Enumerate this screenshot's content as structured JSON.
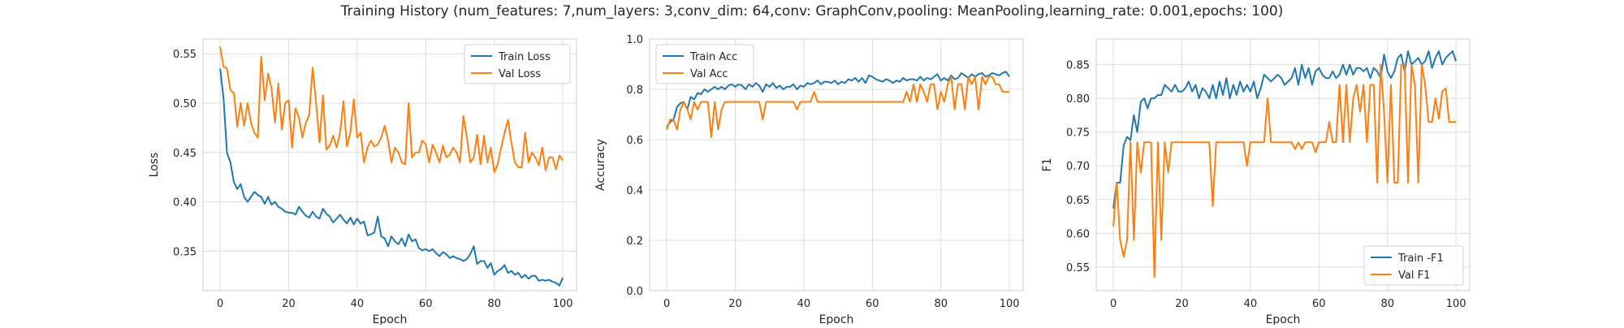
{
  "figure": {
    "title": "Training History (num_features: 7,num_layers: 3,conv_dim: 64,conv: GraphConv,pooling: MeanPooling,learning_rate: 0.001,epochs: 100)"
  },
  "colors": {
    "train": "#1f77b4",
    "val": "#ff7f0e",
    "grid": "#dcdcdc",
    "spine": "#cccccc"
  },
  "chart_data": [
    {
      "type": "line",
      "title": "",
      "xlabel": "Epoch",
      "ylabel": "Loss",
      "xlim": [
        -5,
        104
      ],
      "ylim": [
        0.31,
        0.565
      ],
      "xticks": [
        0,
        20,
        40,
        60,
        80,
        100
      ],
      "yticks": [
        0.35,
        0.4,
        0.45,
        0.5,
        0.55
      ],
      "ytick_labels": [
        "0.35",
        "0.40",
        "0.45",
        "0.50",
        "0.55"
      ],
      "grid": true,
      "legend_loc": "upper right",
      "series": [
        {
          "name": "Train Loss",
          "color": "#1f77b4",
          "values": [
            0.535,
            0.505,
            0.45,
            0.44,
            0.42,
            0.413,
            0.418,
            0.405,
            0.4,
            0.405,
            0.41,
            0.407,
            0.405,
            0.398,
            0.405,
            0.397,
            0.4,
            0.395,
            0.393,
            0.39,
            0.389,
            0.389,
            0.387,
            0.395,
            0.39,
            0.386,
            0.384,
            0.39,
            0.385,
            0.383,
            0.393,
            0.388,
            0.385,
            0.379,
            0.383,
            0.387,
            0.382,
            0.378,
            0.384,
            0.377,
            0.383,
            0.378,
            0.38,
            0.366,
            0.367,
            0.369,
            0.385,
            0.365,
            0.363,
            0.355,
            0.365,
            0.36,
            0.357,
            0.363,
            0.355,
            0.367,
            0.36,
            0.362,
            0.353,
            0.351,
            0.352,
            0.35,
            0.352,
            0.348,
            0.345,
            0.349,
            0.347,
            0.343,
            0.345,
            0.343,
            0.342,
            0.34,
            0.342,
            0.347,
            0.355,
            0.337,
            0.34,
            0.34,
            0.333,
            0.338,
            0.326,
            0.33,
            0.332,
            0.336,
            0.328,
            0.33,
            0.326,
            0.328,
            0.323,
            0.326,
            0.322,
            0.325,
            0.325,
            0.32,
            0.321,
            0.32,
            0.321,
            0.319,
            0.318,
            0.315,
            0.323
          ]
        },
        {
          "name": "Val Loss",
          "color": "#ff7f0e",
          "values": [
            0.557,
            0.537,
            0.535,
            0.513,
            0.51,
            0.476,
            0.5,
            0.477,
            0.5,
            0.48,
            0.47,
            0.465,
            0.547,
            0.503,
            0.53,
            0.515,
            0.48,
            0.52,
            0.473,
            0.5,
            0.503,
            0.455,
            0.495,
            0.485,
            0.465,
            0.48,
            0.488,
            0.536,
            0.5,
            0.46,
            0.508,
            0.453,
            0.457,
            0.467,
            0.455,
            0.47,
            0.502,
            0.456,
            0.47,
            0.504,
            0.465,
            0.47,
            0.44,
            0.455,
            0.462,
            0.456,
            0.458,
            0.465,
            0.477,
            0.462,
            0.44,
            0.455,
            0.45,
            0.44,
            0.438,
            0.5,
            0.445,
            0.45,
            0.45,
            0.462,
            0.458,
            0.44,
            0.458,
            0.45,
            0.44,
            0.457,
            0.445,
            0.448,
            0.455,
            0.45,
            0.44,
            0.487,
            0.465,
            0.44,
            0.445,
            0.468,
            0.438,
            0.467,
            0.44,
            0.455,
            0.43,
            0.438,
            0.455,
            0.47,
            0.483,
            0.46,
            0.44,
            0.435,
            0.435,
            0.47,
            0.44,
            0.45,
            0.445,
            0.437,
            0.455,
            0.432,
            0.445,
            0.445,
            0.433,
            0.447,
            0.442
          ]
        }
      ]
    },
    {
      "type": "line",
      "title": "",
      "xlabel": "Epoch",
      "ylabel": "Accuracy",
      "xlim": [
        -5,
        104
      ],
      "ylim": [
        0.0,
        1.0
      ],
      "xticks": [
        0,
        20,
        40,
        60,
        80,
        100
      ],
      "yticks": [
        0.0,
        0.2,
        0.4,
        0.6,
        0.8,
        1.0
      ],
      "ytick_labels": [
        "0.0",
        "0.2",
        "0.4",
        "0.6",
        "0.8",
        "1.0"
      ],
      "grid": true,
      "legend_loc": "upper left",
      "series": [
        {
          "name": "Train Acc",
          "color": "#1f77b4",
          "values": [
            0.65,
            0.67,
            0.68,
            0.73,
            0.745,
            0.75,
            0.72,
            0.77,
            0.76,
            0.785,
            0.78,
            0.8,
            0.79,
            0.8,
            0.81,
            0.8,
            0.81,
            0.8,
            0.815,
            0.82,
            0.81,
            0.82,
            0.815,
            0.8,
            0.82,
            0.81,
            0.825,
            0.815,
            0.79,
            0.82,
            0.81,
            0.825,
            0.805,
            0.815,
            0.8,
            0.81,
            0.81,
            0.82,
            0.8,
            0.815,
            0.81,
            0.825,
            0.82,
            0.825,
            0.835,
            0.82,
            0.83,
            0.83,
            0.825,
            0.835,
            0.82,
            0.83,
            0.825,
            0.84,
            0.835,
            0.845,
            0.83,
            0.845,
            0.825,
            0.855,
            0.85,
            0.84,
            0.835,
            0.83,
            0.84,
            0.835,
            0.825,
            0.835,
            0.83,
            0.845,
            0.835,
            0.84,
            0.84,
            0.835,
            0.85,
            0.835,
            0.845,
            0.84,
            0.85,
            0.86,
            0.835,
            0.845,
            0.835,
            0.855,
            0.84,
            0.845,
            0.865,
            0.855,
            0.845,
            0.86,
            0.85,
            0.86,
            0.865,
            0.85,
            0.855,
            0.865,
            0.86,
            0.855,
            0.865,
            0.87,
            0.85
          ]
        },
        {
          "name": "Val Acc",
          "color": "#ff7f0e",
          "values": [
            0.64,
            0.68,
            0.68,
            0.64,
            0.72,
            0.75,
            0.72,
            0.68,
            0.75,
            0.72,
            0.75,
            0.75,
            0.75,
            0.61,
            0.75,
            0.64,
            0.72,
            0.75,
            0.75,
            0.75,
            0.75,
            0.75,
            0.75,
            0.75,
            0.75,
            0.75,
            0.75,
            0.75,
            0.68,
            0.75,
            0.75,
            0.75,
            0.75,
            0.75,
            0.75,
            0.75,
            0.75,
            0.75,
            0.72,
            0.75,
            0.75,
            0.75,
            0.75,
            0.79,
            0.75,
            0.75,
            0.75,
            0.75,
            0.75,
            0.75,
            0.75,
            0.75,
            0.75,
            0.75,
            0.75,
            0.75,
            0.75,
            0.75,
            0.75,
            0.75,
            0.75,
            0.75,
            0.75,
            0.75,
            0.75,
            0.75,
            0.75,
            0.75,
            0.75,
            0.75,
            0.79,
            0.75,
            0.82,
            0.75,
            0.82,
            0.79,
            0.75,
            0.82,
            0.82,
            0.72,
            0.79,
            0.75,
            0.82,
            0.85,
            0.72,
            0.82,
            0.82,
            0.72,
            0.85,
            0.82,
            0.85,
            0.72,
            0.85,
            0.82,
            0.85,
            0.85,
            0.82,
            0.82,
            0.79,
            0.79,
            0.79
          ]
        }
      ]
    },
    {
      "type": "line",
      "title": "",
      "xlabel": "Epoch",
      "ylabel": "F1",
      "xlim": [
        -5,
        104
      ],
      "ylim": [
        0.515,
        0.888
      ],
      "xticks": [
        0,
        20,
        40,
        60,
        80,
        100
      ],
      "yticks": [
        0.55,
        0.6,
        0.65,
        0.7,
        0.75,
        0.8,
        0.85
      ],
      "ytick_labels": [
        "0.55",
        "0.60",
        "0.65",
        "0.70",
        "0.75",
        "0.80",
        "0.85"
      ],
      "grid": true,
      "legend_loc": "lower right",
      "series": [
        {
          "name": "Train -F1",
          "color": "#1f77b4",
          "values": [
            0.637,
            0.675,
            0.675,
            0.73,
            0.743,
            0.738,
            0.775,
            0.75,
            0.795,
            0.8,
            0.785,
            0.8,
            0.8,
            0.805,
            0.805,
            0.82,
            0.815,
            0.81,
            0.82,
            0.81,
            0.81,
            0.815,
            0.825,
            0.81,
            0.82,
            0.8,
            0.815,
            0.81,
            0.8,
            0.82,
            0.8,
            0.825,
            0.805,
            0.83,
            0.8,
            0.82,
            0.805,
            0.825,
            0.81,
            0.82,
            0.81,
            0.825,
            0.8,
            0.815,
            0.835,
            0.83,
            0.825,
            0.83,
            0.835,
            0.83,
            0.82,
            0.825,
            0.83,
            0.845,
            0.82,
            0.85,
            0.83,
            0.845,
            0.82,
            0.84,
            0.845,
            0.835,
            0.83,
            0.83,
            0.84,
            0.83,
            0.835,
            0.85,
            0.835,
            0.85,
            0.835,
            0.845,
            0.845,
            0.84,
            0.845,
            0.83,
            0.845,
            0.84,
            0.83,
            0.865,
            0.84,
            0.83,
            0.84,
            0.86,
            0.865,
            0.84,
            0.87,
            0.85,
            0.855,
            0.86,
            0.85,
            0.855,
            0.87,
            0.845,
            0.86,
            0.87,
            0.85,
            0.86,
            0.865,
            0.87,
            0.855
          ]
        },
        {
          "name": "Val F1",
          "color": "#ff7f0e",
          "values": [
            0.61,
            0.675,
            0.59,
            0.565,
            0.59,
            0.735,
            0.59,
            0.735,
            0.69,
            0.735,
            0.735,
            0.735,
            0.535,
            0.735,
            0.59,
            0.735,
            0.69,
            0.735,
            0.735,
            0.735,
            0.735,
            0.735,
            0.735,
            0.735,
            0.735,
            0.735,
            0.735,
            0.735,
            0.735,
            0.64,
            0.735,
            0.735,
            0.735,
            0.735,
            0.735,
            0.735,
            0.735,
            0.735,
            0.735,
            0.7,
            0.735,
            0.735,
            0.735,
            0.735,
            0.735,
            0.8,
            0.735,
            0.735,
            0.735,
            0.735,
            0.735,
            0.735,
            0.735,
            0.725,
            0.735,
            0.725,
            0.735,
            0.735,
            0.735,
            0.72,
            0.735,
            0.735,
            0.735,
            0.765,
            0.735,
            0.735,
            0.82,
            0.735,
            0.82,
            0.735,
            0.8,
            0.82,
            0.78,
            0.82,
            0.735,
            0.82,
            0.82,
            0.675,
            0.85,
            0.78,
            0.675,
            0.82,
            0.675,
            0.675,
            0.85,
            0.85,
            0.675,
            0.85,
            0.82,
            0.675,
            0.85,
            0.82,
            0.765,
            0.765,
            0.8,
            0.77,
            0.81,
            0.815,
            0.765,
            0.765,
            0.765
          ]
        }
      ]
    }
  ]
}
